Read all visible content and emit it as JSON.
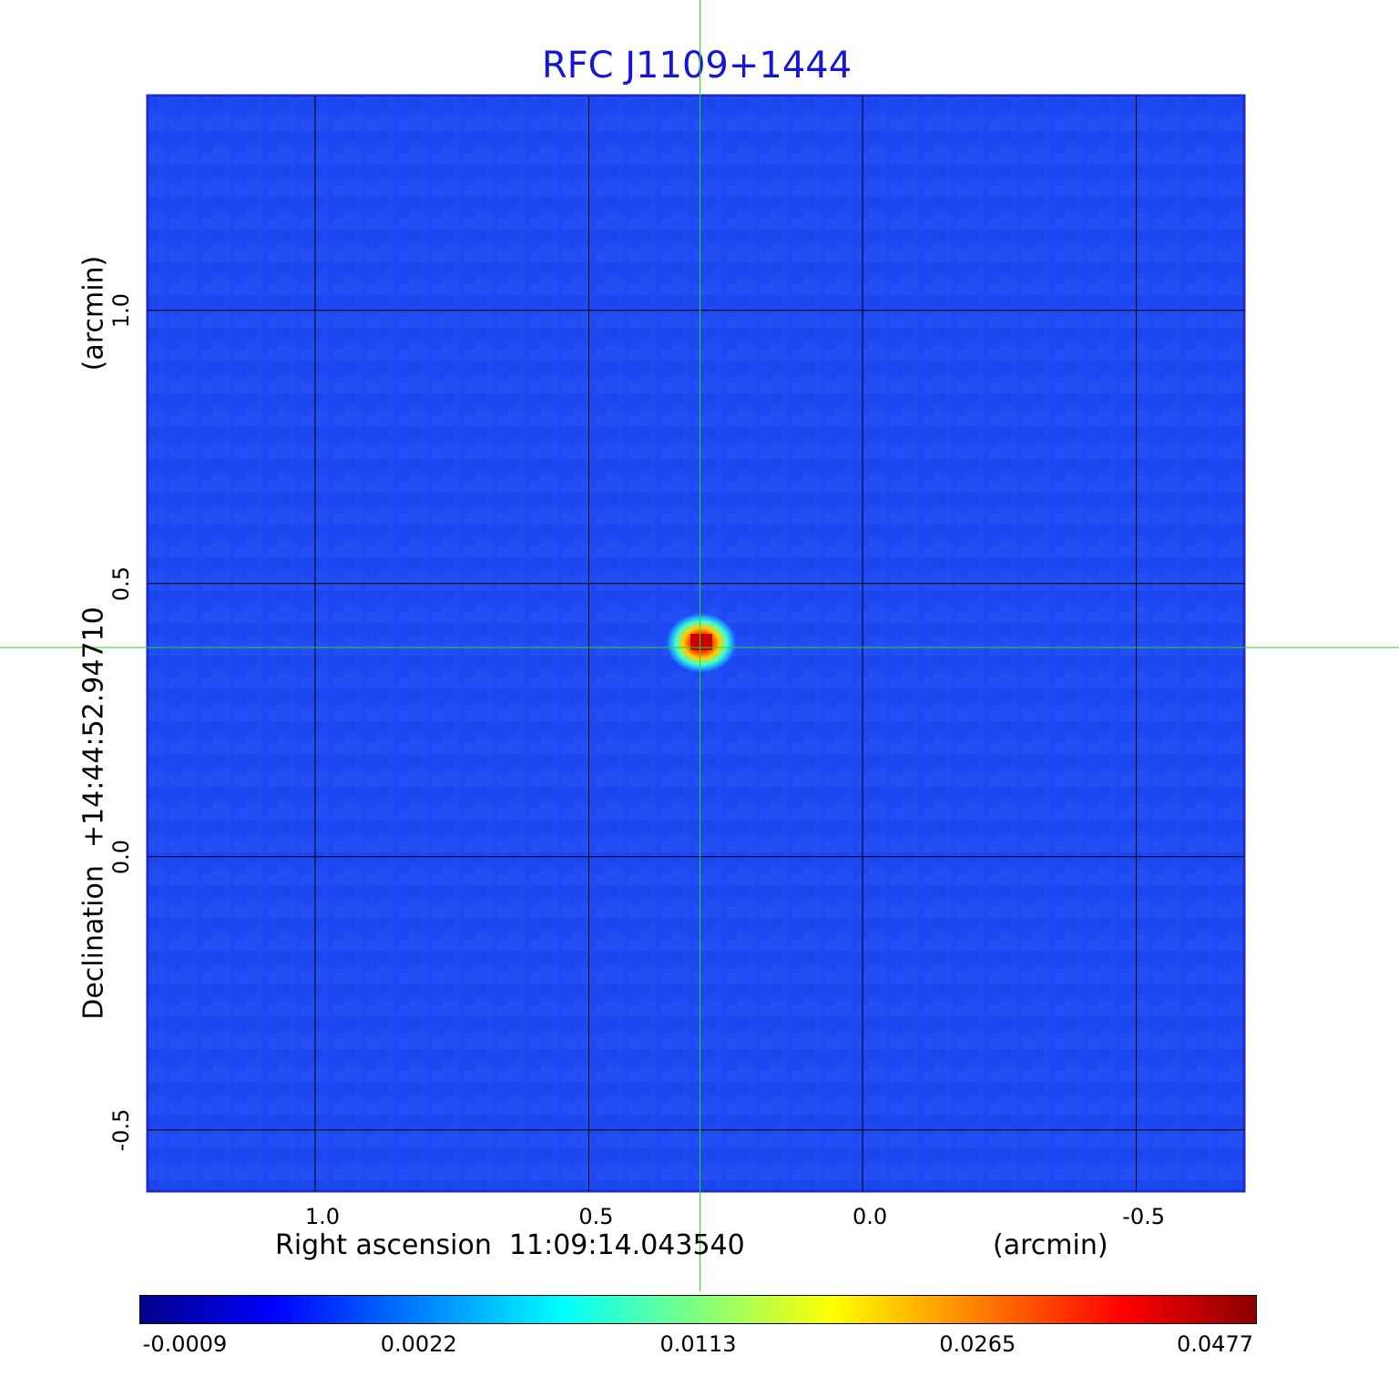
{
  "chart_data": {
    "type": "heatmap",
    "title": "RFC J1109+1444",
    "xlabel": "Right ascension  11:09:14.043540",
    "xunit": "(arcmin)",
    "ylabel": "Declination  +14:44:52.94710",
    "yunit": "(arcmin)",
    "xlim": [
      1.306,
      -0.697
    ],
    "ylim": [
      -0.612,
      1.393
    ],
    "x_ticks": [
      {
        "value": 1.0,
        "label": "1.0"
      },
      {
        "value": 0.5,
        "label": "0.5"
      },
      {
        "value": 0.0,
        "label": "0.0"
      },
      {
        "value": -0.5,
        "label": "-0.5"
      }
    ],
    "y_ticks": [
      {
        "value": 1.0,
        "label": "1.0"
      },
      {
        "value": 0.5,
        "label": "0.5"
      },
      {
        "value": 0.0,
        "label": "0.0"
      },
      {
        "value": -0.5,
        "label": "-0.5"
      }
    ],
    "grid": true,
    "crosshair": {
      "x": 0.297,
      "y": 0.383
    },
    "source_peak": {
      "x": 0.297,
      "y": 0.388,
      "value": 0.0477
    },
    "colormap": "jet",
    "colorbar": {
      "ticks": [
        "-0.0009",
        "0.0022",
        "0.0113",
        "0.0265",
        "0.0477"
      ],
      "colors": [
        "#00008c",
        "#0000ff",
        "#00ffff",
        "#ffff00",
        "#ff0000",
        "#8c0000"
      ]
    }
  },
  "colors": {
    "title": "#1515d8",
    "background": "#1f49f2",
    "crosshair": "#22dd22",
    "grid": "#000000"
  }
}
